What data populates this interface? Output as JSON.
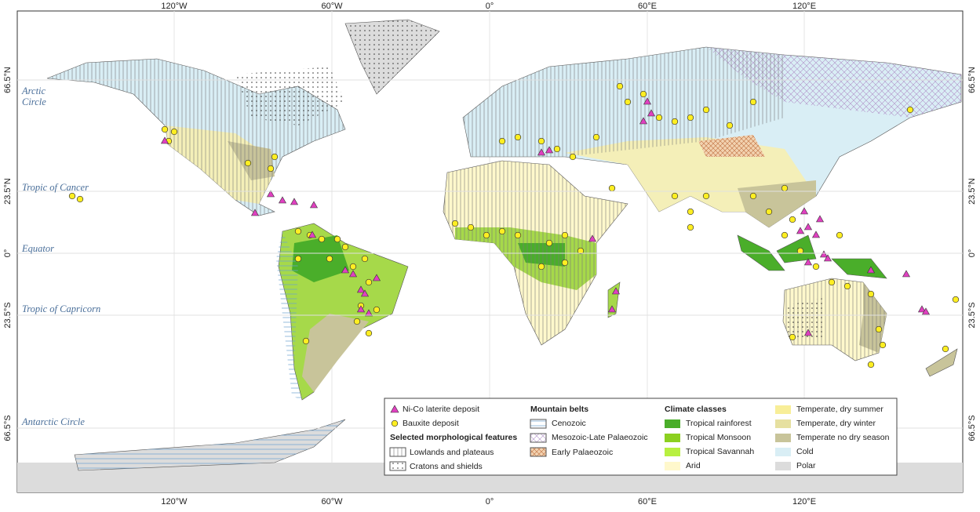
{
  "top_lon_labels": [
    "120°W",
    "60°W",
    "0°",
    "60°E",
    "120°E"
  ],
  "bottom_lon_labels": [
    "120°W",
    "60°W",
    "0°",
    "60°E",
    "120°E"
  ],
  "left_lat_labels": [
    "66.5°N",
    "23.5°N",
    "0°",
    "23.5°S",
    "66.5°S"
  ],
  "right_lat_labels": [
    "66.5°N",
    "23.5°N",
    "0°",
    "23.5°S",
    "66.5°S"
  ],
  "lines": {
    "arctic_circle": [
      "Arctic",
      "Circle"
    ],
    "tropic_of_cancer": "Tropic of Cancer",
    "equator": "Equator",
    "tropic_of_capricorn": "Tropic of Capricorn",
    "antarctic_circle": "Antarctic Circle"
  },
  "legend": {
    "deposits": [
      "Ni-Co laterite deposit",
      "Bauxite deposit"
    ],
    "morphology": {
      "title": "Selected morphological features",
      "items": [
        "Lowlands and plateaus",
        "Cratons and shields"
      ]
    },
    "mountain_belts": {
      "title": "Mountain belts",
      "items": [
        "Cenozoic",
        "Mesozoic-Late Palaeozoic",
        "Early Palaeozoic"
      ]
    },
    "climate": {
      "title": "Climate classes",
      "items": [
        {
          "name": "Tropical rainforest",
          "color": "#4aae2a"
        },
        {
          "name": "Tropical Monsoon",
          "color": "#8cd020"
        },
        {
          "name": "Tropical Savannah",
          "color": "#b8f040"
        },
        {
          "name": "Arid",
          "color": "#fff8cc"
        },
        {
          "name": "Temperate, dry summer",
          "color": "#f8ee98"
        },
        {
          "name": "Temperate, dry winter",
          "color": "#e6e0a0"
        },
        {
          "name": "Temperate no dry season",
          "color": "#c8c49a"
        },
        {
          "name": "Cold",
          "color": "#d9eef5"
        },
        {
          "name": "Polar",
          "color": "#dcdcdc"
        }
      ]
    }
  }
}
